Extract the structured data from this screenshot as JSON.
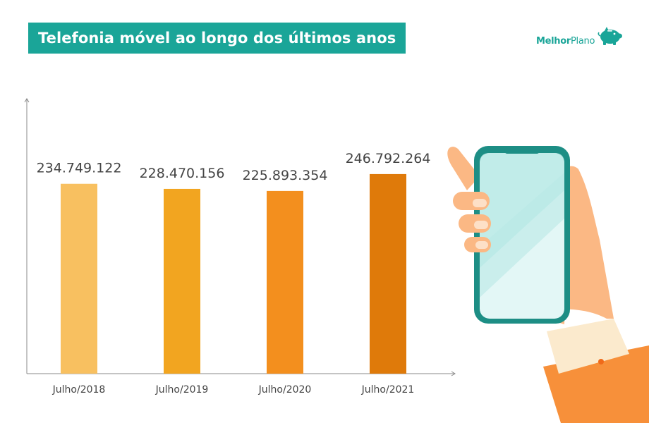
{
  "title": "Telefonia móvel ao longo dos últimos anos",
  "brand": {
    "bold": "Melhor",
    "regular": "Plano",
    "icon": "piggy-bank-icon"
  },
  "colors": {
    "accent": "#1aa598",
    "bars": [
      "#f8c060",
      "#f2a520",
      "#f38f1e",
      "#df7a0a"
    ],
    "axis": "#888888",
    "label": "#444444"
  },
  "chart_data": {
    "type": "bar",
    "title": "Telefonia móvel ao longo dos últimos anos",
    "categories": [
      "Julho/2018",
      "Julho/2019",
      "Julho/2020",
      "Julho/2021"
    ],
    "values": [
      234749122,
      228470156,
      225893354,
      246792264
    ],
    "value_labels": [
      "234.749.122",
      "228.470.156",
      "225.893.354",
      "246.792.264"
    ],
    "xlabel": "",
    "ylabel": "",
    "ylim": [
      0,
      340000000
    ],
    "grid": false
  }
}
